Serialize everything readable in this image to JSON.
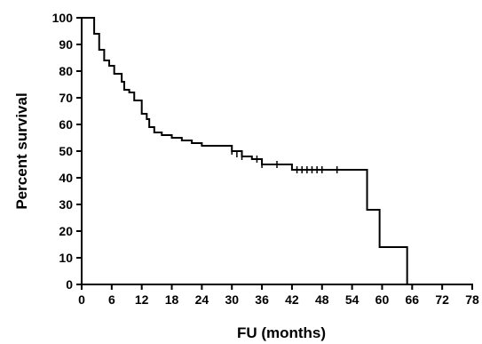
{
  "chart_data": {
    "type": "line",
    "subtype": "kaplan-meier",
    "title": "",
    "xlabel": "FU (months)",
    "ylabel": "Percent survival",
    "xlim": [
      0,
      78
    ],
    "ylim": [
      0,
      100
    ],
    "x_ticks": [
      0,
      6,
      12,
      18,
      24,
      30,
      36,
      42,
      48,
      54,
      60,
      66,
      72,
      78
    ],
    "y_ticks": [
      0,
      10,
      20,
      30,
      40,
      50,
      60,
      70,
      80,
      90,
      100
    ],
    "grid": false,
    "legend": "none",
    "line_color": "#000000",
    "series": [
      {
        "steps": [
          [
            0,
            100
          ],
          [
            2.5,
            100
          ],
          [
            2.5,
            94
          ],
          [
            3.5,
            94
          ],
          [
            3.5,
            88
          ],
          [
            4.5,
            88
          ],
          [
            4.5,
            84
          ],
          [
            5.5,
            84
          ],
          [
            5.5,
            82
          ],
          [
            6.5,
            82
          ],
          [
            6.5,
            79
          ],
          [
            8,
            79
          ],
          [
            8,
            76
          ],
          [
            8.5,
            76
          ],
          [
            8.5,
            73
          ],
          [
            9.5,
            73
          ],
          [
            9.5,
            72
          ],
          [
            10.5,
            72
          ],
          [
            10.5,
            69
          ],
          [
            12,
            69
          ],
          [
            12,
            64
          ],
          [
            13,
            64
          ],
          [
            13,
            62
          ],
          [
            13.5,
            62
          ],
          [
            13.5,
            59
          ],
          [
            14.5,
            59
          ],
          [
            14.5,
            57
          ],
          [
            16,
            57
          ],
          [
            16,
            56
          ],
          [
            18,
            56
          ],
          [
            18,
            55
          ],
          [
            20,
            55
          ],
          [
            20,
            54
          ],
          [
            22,
            54
          ],
          [
            22,
            53
          ],
          [
            24,
            53
          ],
          [
            24,
            52
          ],
          [
            30,
            52
          ],
          [
            30,
            50
          ],
          [
            32,
            50
          ],
          [
            32,
            48
          ],
          [
            34,
            48
          ],
          [
            34,
            47
          ],
          [
            36,
            47
          ],
          [
            36,
            45
          ],
          [
            42,
            45
          ],
          [
            42,
            43
          ],
          [
            57,
            43
          ],
          [
            57,
            28
          ],
          [
            59.5,
            28
          ],
          [
            59.5,
            14
          ],
          [
            65,
            14
          ],
          [
            65,
            0
          ]
        ],
        "censored": [
          [
            30,
            50
          ],
          [
            31,
            49
          ],
          [
            32,
            48
          ],
          [
            35,
            47
          ],
          [
            36,
            45
          ],
          [
            39,
            45
          ],
          [
            43,
            43
          ],
          [
            44,
            43
          ],
          [
            45,
            43
          ],
          [
            46,
            43
          ],
          [
            47,
            43
          ],
          [
            48,
            43
          ],
          [
            51,
            43
          ]
        ]
      }
    ]
  }
}
